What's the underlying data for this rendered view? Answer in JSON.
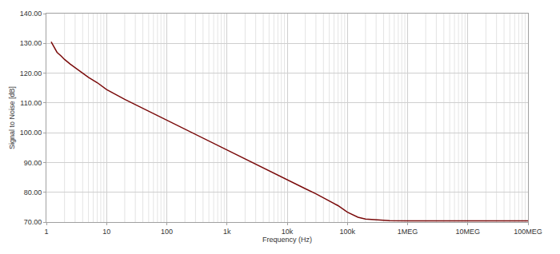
{
  "chart_data": {
    "type": "line",
    "x_label": "Frequency (Hz)",
    "y_label": "Signal to Noise [dB]",
    "x": [
      1.2,
      1.35,
      1.5,
      1.75,
      2,
      2.5,
      3,
      4,
      5,
      7,
      10,
      20,
      50,
      100,
      200,
      500,
      1000,
      2000,
      5000,
      10000,
      20000,
      30000,
      50000,
      70000,
      100000,
      150000,
      200000,
      300000,
      500000,
      1000000,
      10000000,
      100000000
    ],
    "values": [
      130.5,
      128.5,
      127.0,
      125.8,
      124.6,
      123.0,
      121.8,
      120.0,
      118.6,
      116.8,
      114.5,
      111.2,
      107.2,
      104.2,
      101.2,
      97.2,
      94.2,
      91.2,
      87.2,
      84.2,
      81.2,
      79.5,
      77.2,
      75.5,
      73.3,
      71.6,
      71.0,
      70.7,
      70.5,
      70.4,
      70.4,
      70.4
    ],
    "color": "#7a0a0a",
    "log": "x",
    "grid": true,
    "xlim": [
      1,
      100000000
    ],
    "xticks": [
      1,
      10,
      100,
      {
        "value": 1000,
        "label": "1k"
      },
      {
        "value": 10000,
        "label": "10k"
      },
      {
        "value": 100000,
        "label": "100k"
      },
      {
        "value": 1000000,
        "label": "1MEG"
      },
      {
        "value": 10000000,
        "label": "10MEG"
      },
      {
        "value": 100000000,
        "label": "100MEG"
      }
    ],
    "ylim": [
      70,
      140
    ],
    "yticks": [
      {
        "value": 70,
        "label": "70.00"
      },
      {
        "value": 80,
        "label": "80.00"
      },
      {
        "value": 90,
        "label": "90.00"
      },
      {
        "value": 100,
        "label": "100.00"
      },
      {
        "value": 110,
        "label": "110.00"
      },
      {
        "value": 120,
        "label": "120.00"
      },
      {
        "value": 130,
        "label": "130.00"
      },
      {
        "value": 140,
        "label": "140.00"
      }
    ]
  }
}
